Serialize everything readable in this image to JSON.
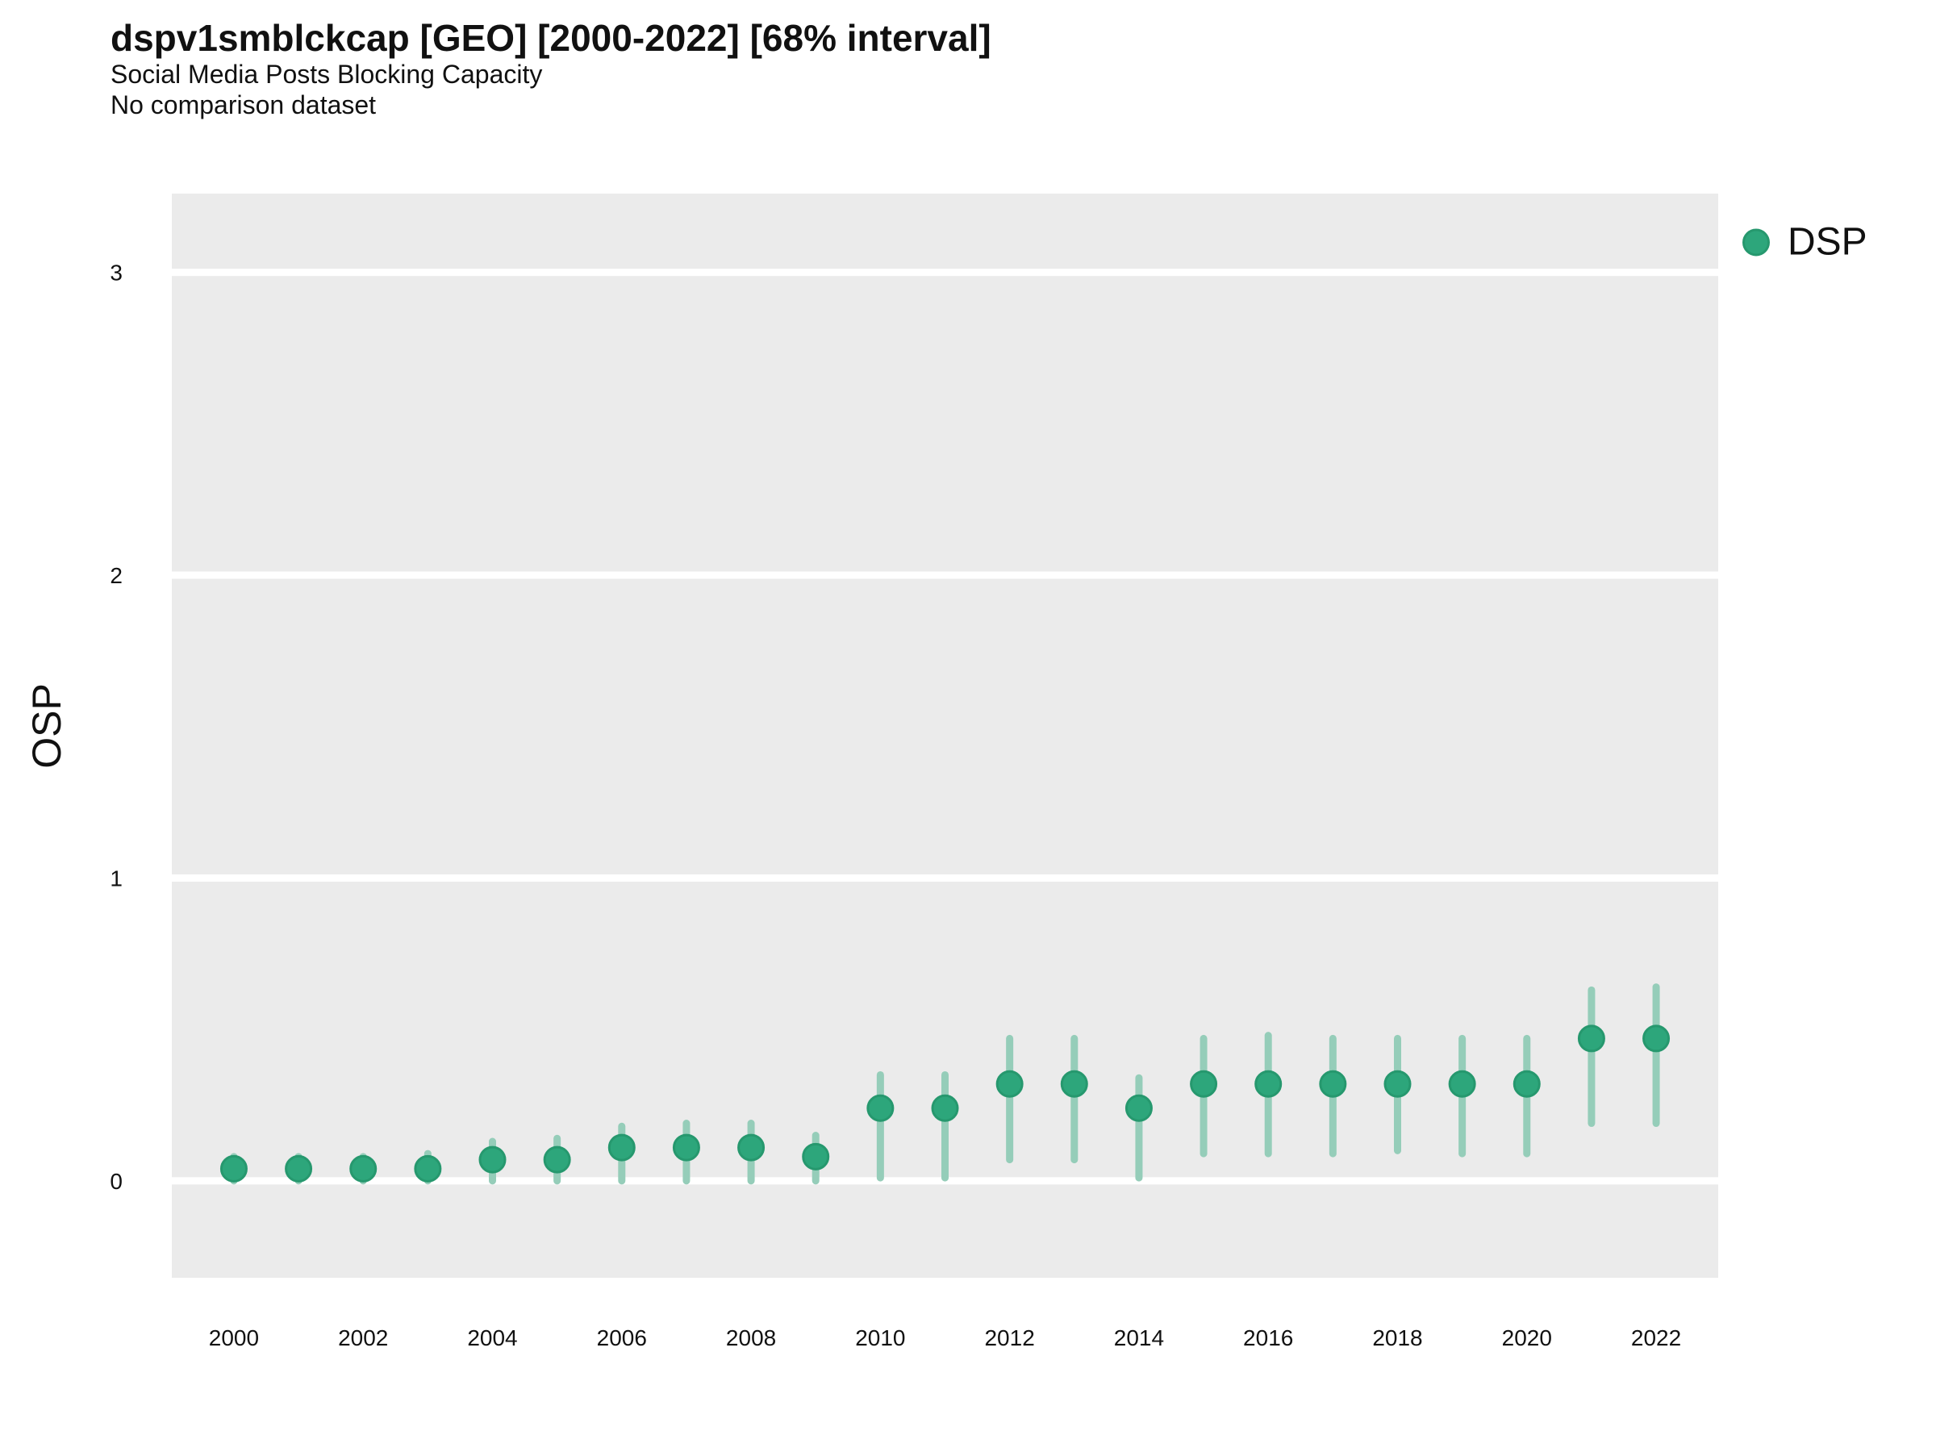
{
  "title": "dspv1smblckcap [GEO] [2000-2022] [68% interval]",
  "subtitle": "Social Media Posts Blocking Capacity",
  "note": "No comparison dataset",
  "y_axis_title": "OSP",
  "legend": {
    "series_label": "DSP",
    "position": "right"
  },
  "colors": {
    "panel_bg": "#EBEBEB",
    "gridline": "#FFFFFF",
    "point_fill": "#2DA67B",
    "point_stroke": "#26986E",
    "interval_bar": "#95CDB9",
    "text": "#111111"
  },
  "chart_data": {
    "type": "scatter",
    "title": "dspv1smblckcap [GEO] [2000-2022] [68% interval]",
    "subtitle": "Social Media Posts Blocking Capacity",
    "note": "No comparison dataset",
    "xlabel": "",
    "ylabel": "OSP",
    "grid": "major-y-only",
    "legend_position": "right",
    "interval_label": "68% interval",
    "x": [
      2000,
      2001,
      2002,
      2003,
      2004,
      2005,
      2006,
      2007,
      2008,
      2009,
      2010,
      2011,
      2012,
      2013,
      2014,
      2015,
      2016,
      2017,
      2018,
      2019,
      2020,
      2021,
      2022
    ],
    "series": [
      {
        "name": "DSP",
        "values": [
          0.04,
          0.04,
          0.04,
          0.04,
          0.07,
          0.07,
          0.11,
          0.11,
          0.11,
          0.08,
          0.24,
          0.24,
          0.32,
          0.32,
          0.24,
          0.32,
          0.32,
          0.32,
          0.32,
          0.32,
          0.32,
          0.47,
          0.47
        ],
        "interval_low": [
          0.0,
          0.0,
          0.0,
          0.0,
          0.0,
          0.0,
          0.0,
          0.0,
          0.0,
          0.0,
          0.01,
          0.01,
          0.07,
          0.07,
          0.01,
          0.09,
          0.09,
          0.09,
          0.1,
          0.09,
          0.09,
          0.19,
          0.19
        ],
        "interval_high": [
          0.08,
          0.08,
          0.08,
          0.09,
          0.13,
          0.14,
          0.18,
          0.19,
          0.19,
          0.15,
          0.35,
          0.35,
          0.47,
          0.47,
          0.34,
          0.47,
          0.48,
          0.47,
          0.47,
          0.47,
          0.47,
          0.63,
          0.64
        ]
      }
    ],
    "x_tick_labels": [
      "2000",
      "2002",
      "2004",
      "2006",
      "2008",
      "2010",
      "2012",
      "2014",
      "2016",
      "2018",
      "2020",
      "2022"
    ],
    "x_tick_values": [
      2000,
      2002,
      2004,
      2006,
      2008,
      2010,
      2012,
      2014,
      2016,
      2018,
      2020,
      2022
    ],
    "y_tick_labels": [
      "0",
      "1",
      "2",
      "3"
    ],
    "y_tick_values": [
      0,
      1,
      2,
      3
    ],
    "xlim": [
      1999.04,
      2022.96
    ],
    "ylim": [
      -0.32,
      3.26
    ]
  }
}
